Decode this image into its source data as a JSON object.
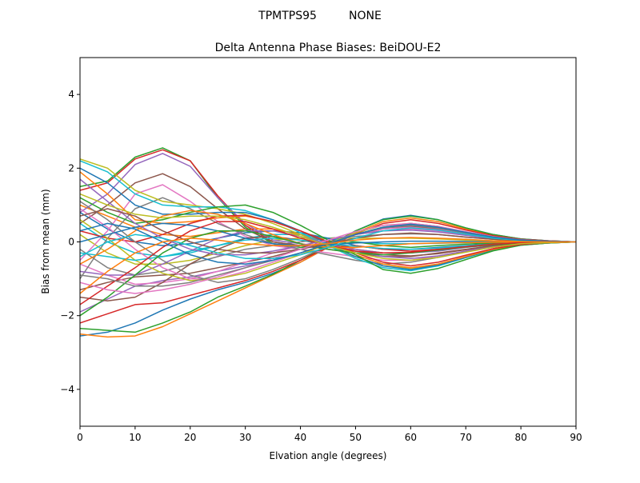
{
  "figure": {
    "suptitle": "TPMTPS95         NONE"
  },
  "chart_data": {
    "type": "line",
    "title": "Delta Antenna Phase Biases: BeiDOU-E2",
    "xlabel": "Elvation angle (degrees)",
    "ylabel": "Bias from mean (mm)",
    "xlim": [
      0,
      90
    ],
    "ylim": [
      -5,
      5
    ],
    "xticks": [
      0,
      10,
      20,
      30,
      40,
      50,
      60,
      70,
      80,
      90
    ],
    "yticks": [
      -4,
      -2,
      0,
      2,
      4
    ],
    "grid": false,
    "legend": "none",
    "colors": [
      "#1f77b4",
      "#ff7f0e",
      "#2ca02c",
      "#d62728",
      "#9467bd",
      "#8c564b",
      "#e377c2",
      "#7f7f7f",
      "#bcbd22",
      "#17becf"
    ],
    "x": [
      0,
      5,
      10,
      15,
      20,
      25,
      30,
      35,
      40,
      45,
      50,
      55,
      60,
      65,
      70,
      75,
      80,
      85,
      90
    ],
    "series": [
      {
        "values": [
          -2.55,
          -2.45,
          -2.2,
          -1.85,
          -1.55,
          -1.3,
          -1.1,
          -0.85,
          -0.55,
          -0.15,
          0.3,
          0.62,
          0.72,
          0.6,
          0.38,
          0.2,
          0.08,
          0.03,
          0
        ]
      },
      {
        "values": [
          -2.5,
          -2.58,
          -2.55,
          -2.3,
          -1.95,
          -1.6,
          -1.25,
          -0.9,
          -0.55,
          -0.15,
          0.25,
          0.55,
          0.65,
          0.55,
          0.35,
          0.18,
          0.07,
          0.03,
          0
        ]
      },
      {
        "values": [
          -2.35,
          -2.4,
          -2.45,
          -2.2,
          -1.9,
          -1.5,
          -1.2,
          -0.88,
          -0.5,
          -0.1,
          0.3,
          0.6,
          0.7,
          0.6,
          0.38,
          0.2,
          0.08,
          0.03,
          0
        ]
      },
      {
        "values": [
          -2.2,
          -1.95,
          -1.7,
          -1.65,
          -1.45,
          -1.25,
          -1.05,
          -0.8,
          -0.5,
          -0.15,
          0.22,
          0.5,
          0.6,
          0.5,
          0.32,
          0.17,
          0.07,
          0.03,
          0
        ]
      },
      {
        "values": [
          -1.9,
          -1.55,
          -1.2,
          -1.05,
          -0.95,
          -0.8,
          -0.65,
          -0.5,
          -0.3,
          -0.05,
          0.2,
          0.4,
          0.5,
          0.42,
          0.27,
          0.14,
          0.06,
          0.02,
          0
        ]
      },
      {
        "values": [
          -1.3,
          -1.1,
          -0.95,
          -0.9,
          -0.85,
          -0.7,
          -0.55,
          -0.4,
          -0.2,
          0.0,
          0.2,
          0.35,
          0.42,
          0.35,
          0.22,
          0.12,
          0.05,
          0.02,
          0
        ]
      },
      {
        "values": [
          -0.6,
          -0.9,
          -1.15,
          -1.1,
          -1.0,
          -0.8,
          -0.55,
          -0.3,
          -0.1,
          0.05,
          0.2,
          0.3,
          0.35,
          0.3,
          0.2,
          0.1,
          0.04,
          0.02,
          0
        ]
      },
      {
        "values": [
          -0.2,
          -0.7,
          -0.9,
          -0.8,
          -0.6,
          -0.4,
          -0.2,
          -0.1,
          0.0,
          0.1,
          0.15,
          0.2,
          0.22,
          0.2,
          0.13,
          0.07,
          0.03,
          0.01,
          0
        ]
      },
      {
        "values": [
          0.2,
          -0.3,
          -0.6,
          -0.6,
          -0.5,
          -0.3,
          -0.1,
          0.05,
          0.1,
          0.1,
          0.1,
          0.1,
          0.1,
          0.08,
          0.05,
          0.03,
          0.01,
          0.0,
          0
        ]
      },
      {
        "values": [
          0.5,
          0.0,
          -0.3,
          -0.4,
          -0.3,
          -0.1,
          0.1,
          0.2,
          0.2,
          0.1,
          0.0,
          -0.05,
          -0.05,
          -0.04,
          -0.02,
          -0.01,
          0.0,
          0.0,
          0
        ]
      },
      {
        "values": [
          0.8,
          0.35,
          0.0,
          -0.1,
          -0.05,
          0.1,
          0.25,
          0.3,
          0.25,
          0.1,
          -0.1,
          -0.2,
          -0.2,
          -0.15,
          -0.1,
          -0.05,
          -0.02,
          -0.01,
          0
        ]
      },
      {
        "values": [
          1.0,
          0.7,
          0.4,
          0.2,
          0.15,
          0.25,
          0.35,
          0.35,
          0.2,
          0.0,
          -0.2,
          -0.3,
          -0.3,
          -0.22,
          -0.14,
          -0.07,
          -0.03,
          -0.01,
          0
        ]
      },
      {
        "values": [
          1.5,
          1.65,
          2.3,
          2.55,
          2.2,
          1.2,
          0.4,
          -0.05,
          -0.15,
          -0.1,
          0.0,
          -0.1,
          -0.15,
          -0.1,
          -0.06,
          -0.03,
          -0.01,
          0.0,
          0
        ]
      },
      {
        "values": [
          1.4,
          1.6,
          2.25,
          2.5,
          2.2,
          1.25,
          0.45,
          0.0,
          -0.1,
          -0.15,
          -0.1,
          -0.2,
          -0.25,
          -0.2,
          -0.12,
          -0.06,
          -0.02,
          -0.01,
          0
        ]
      },
      {
        "values": [
          0.8,
          1.3,
          2.1,
          2.4,
          2.05,
          1.2,
          0.5,
          0.05,
          -0.05,
          -0.15,
          -0.2,
          -0.3,
          -0.3,
          -0.25,
          -0.15,
          -0.08,
          -0.03,
          -0.01,
          0
        ]
      },
      {
        "values": [
          0.5,
          1.0,
          1.6,
          1.85,
          1.5,
          0.9,
          0.35,
          0.0,
          -0.1,
          -0.2,
          -0.3,
          -0.4,
          -0.4,
          -0.3,
          -0.2,
          -0.1,
          -0.04,
          -0.02,
          0
        ]
      },
      {
        "values": [
          -0.5,
          0.3,
          1.3,
          1.55,
          1.1,
          0.55,
          0.15,
          -0.1,
          -0.2,
          -0.3,
          -0.4,
          -0.5,
          -0.5,
          -0.38,
          -0.25,
          -0.13,
          -0.05,
          -0.02,
          0
        ]
      },
      {
        "values": [
          -1.0,
          0.1,
          0.9,
          1.2,
          0.9,
          0.5,
          0.2,
          -0.05,
          -0.2,
          -0.35,
          -0.5,
          -0.6,
          -0.55,
          -0.42,
          -0.27,
          -0.14,
          -0.05,
          -0.02,
          0
        ]
      },
      {
        "values": [
          2.25,
          2.0,
          1.4,
          1.1,
          1.0,
          0.9,
          0.75,
          0.5,
          0.2,
          -0.1,
          -0.4,
          -0.65,
          -0.72,
          -0.6,
          -0.4,
          -0.2,
          -0.08,
          -0.03,
          0
        ]
      },
      {
        "values": [
          2.2,
          1.9,
          1.3,
          1.0,
          0.95,
          0.95,
          0.85,
          0.6,
          0.25,
          -0.1,
          -0.45,
          -0.7,
          -0.78,
          -0.65,
          -0.43,
          -0.22,
          -0.09,
          -0.03,
          0
        ]
      },
      {
        "values": [
          2.0,
          1.6,
          1.0,
          0.75,
          0.75,
          0.8,
          0.8,
          0.6,
          0.3,
          -0.05,
          -0.4,
          -0.65,
          -0.75,
          -0.63,
          -0.42,
          -0.21,
          -0.08,
          -0.03,
          0
        ]
      },
      {
        "values": [
          1.9,
          1.3,
          0.6,
          0.5,
          0.55,
          0.65,
          0.7,
          0.55,
          0.3,
          0.0,
          -0.35,
          -0.6,
          -0.7,
          -0.6,
          -0.4,
          -0.2,
          -0.08,
          -0.03,
          0
        ]
      },
      {
        "values": [
          1.2,
          0.8,
          0.5,
          0.6,
          0.8,
          0.95,
          1.0,
          0.8,
          0.45,
          0.05,
          -0.35,
          -0.75,
          -0.85,
          -0.72,
          -0.48,
          -0.24,
          -0.09,
          -0.03,
          0
        ]
      },
      {
        "values": [
          0.3,
          0.1,
          0.0,
          0.2,
          0.5,
          0.7,
          0.72,
          0.55,
          0.3,
          0.0,
          -0.3,
          -0.55,
          -0.65,
          -0.55,
          -0.36,
          -0.18,
          -0.07,
          -0.02,
          0
        ]
      },
      {
        "values": [
          -0.8,
          -0.9,
          -0.9,
          -0.6,
          -0.25,
          0.1,
          0.3,
          0.3,
          0.15,
          -0.05,
          -0.25,
          -0.4,
          -0.45,
          -0.38,
          -0.25,
          -0.12,
          -0.05,
          -0.02,
          0
        ]
      },
      {
        "values": [
          -1.5,
          -1.6,
          -1.5,
          -1.1,
          -0.6,
          -0.2,
          0.1,
          0.15,
          0.05,
          -0.1,
          -0.25,
          -0.35,
          -0.38,
          -0.32,
          -0.21,
          -0.1,
          -0.04,
          -0.01,
          0
        ]
      },
      {
        "values": [
          0.9,
          0.4,
          -0.2,
          -0.7,
          -1.0,
          -1.0,
          -0.8,
          -0.55,
          -0.3,
          -0.05,
          0.2,
          0.35,
          0.4,
          0.33,
          0.22,
          0.11,
          0.04,
          0.02,
          0
        ]
      },
      {
        "values": [
          1.1,
          0.6,
          0.0,
          -0.5,
          -0.9,
          -1.1,
          -1.0,
          -0.75,
          -0.45,
          -0.1,
          0.2,
          0.4,
          0.45,
          0.37,
          0.24,
          0.12,
          0.05,
          0.02,
          0
        ]
      },
      {
        "values": [
          0.6,
          0.1,
          -0.5,
          -0.85,
          -1.05,
          -1.0,
          -0.85,
          -0.6,
          -0.35,
          -0.05,
          0.25,
          0.45,
          0.5,
          0.42,
          0.27,
          0.14,
          0.05,
          0.02,
          0
        ]
      },
      {
        "values": [
          -0.3,
          -0.4,
          -0.5,
          -0.4,
          -0.25,
          -0.1,
          0.05,
          0.1,
          0.05,
          -0.05,
          -0.12,
          -0.18,
          -0.2,
          -0.17,
          -0.11,
          -0.06,
          -0.02,
          -0.01,
          0
        ]
      },
      {
        "values": [
          0.0,
          0.2,
          0.4,
          0.5,
          0.45,
          0.3,
          0.1,
          -0.05,
          -0.1,
          -0.08,
          -0.03,
          0.0,
          0.02,
          0.02,
          0.01,
          0.0,
          0.0,
          0.0,
          0
        ]
      },
      {
        "values": [
          -0.6,
          -0.2,
          0.3,
          0.7,
          0.85,
          0.75,
          0.5,
          0.2,
          -0.05,
          -0.15,
          -0.15,
          -0.1,
          -0.05,
          -0.03,
          -0.02,
          -0.01,
          0.0,
          0.0,
          0
        ]
      },
      {
        "values": [
          -2.0,
          -1.5,
          -0.9,
          -0.3,
          0.1,
          0.3,
          0.3,
          0.15,
          -0.05,
          -0.2,
          -0.3,
          -0.35,
          -0.3,
          -0.22,
          -0.14,
          -0.07,
          -0.03,
          -0.01,
          0
        ]
      },
      {
        "values": [
          -1.7,
          -1.2,
          -0.7,
          -0.15,
          0.3,
          0.55,
          0.55,
          0.35,
          0.1,
          -0.1,
          -0.25,
          -0.3,
          -0.28,
          -0.2,
          -0.13,
          -0.06,
          -0.02,
          -0.01,
          0
        ]
      },
      {
        "values": [
          1.7,
          1.1,
          0.5,
          0.1,
          -0.2,
          -0.35,
          -0.35,
          -0.25,
          -0.1,
          0.05,
          0.2,
          0.3,
          0.32,
          0.27,
          0.18,
          0.09,
          0.03,
          0.01,
          0
        ]
      },
      {
        "values": [
          0.7,
          0.9,
          0.7,
          0.3,
          0.0,
          -0.2,
          -0.3,
          -0.3,
          -0.2,
          -0.05,
          0.1,
          0.2,
          0.24,
          0.2,
          0.13,
          0.07,
          0.03,
          0.01,
          0
        ]
      },
      {
        "values": [
          -1.1,
          -1.3,
          -1.4,
          -1.3,
          -1.15,
          -0.95,
          -0.7,
          -0.45,
          -0.2,
          0.05,
          0.28,
          0.45,
          0.5,
          0.42,
          0.28,
          0.14,
          0.05,
          0.02,
          0
        ]
      },
      {
        "values": [
          -0.9,
          -1.0,
          -1.2,
          -1.2,
          -1.1,
          -0.9,
          -0.7,
          -0.5,
          -0.3,
          -0.05,
          0.2,
          0.38,
          0.45,
          0.38,
          0.25,
          0.13,
          0.05,
          0.02,
          0
        ]
      },
      {
        "values": [
          1.3,
          1.0,
          0.75,
          0.65,
          0.7,
          0.7,
          0.6,
          0.4,
          0.15,
          -0.1,
          -0.3,
          -0.45,
          -0.5,
          -0.42,
          -0.28,
          -0.14,
          -0.05,
          -0.02,
          0
        ]
      },
      {
        "values": [
          -0.4,
          0.0,
          0.2,
          0.1,
          -0.1,
          -0.3,
          -0.45,
          -0.45,
          -0.35,
          -0.15,
          0.1,
          0.3,
          0.38,
          0.32,
          0.21,
          0.1,
          0.04,
          0.01,
          0
        ]
      },
      {
        "values": [
          0.3,
          0.5,
          0.35,
          0.0,
          -0.35,
          -0.55,
          -0.6,
          -0.5,
          -0.3,
          -0.05,
          0.2,
          0.4,
          0.48,
          0.4,
          0.26,
          0.13,
          0.05,
          0.02,
          0
        ]
      },
      {
        "values": [
          -1.4,
          -0.8,
          -0.3,
          0.0,
          0.1,
          0.05,
          -0.05,
          -0.1,
          -0.1,
          -0.05,
          0.05,
          0.1,
          0.12,
          0.1,
          0.07,
          0.03,
          0.01,
          0.0,
          0
        ]
      }
    ]
  }
}
